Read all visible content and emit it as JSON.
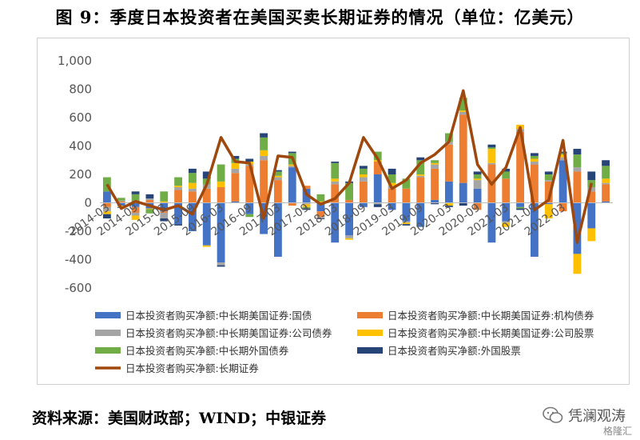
{
  "title": "图 9：季度日本投资者在美国买卖长期证券的情况（单位：亿美元）",
  "source": "资料来源：美国财政部；WIND；中银证券",
  "watermark": {
    "brand": "凭澜观涛",
    "sub": "格隆汇"
  },
  "chart_data": {
    "type": "bar",
    "stacked": true,
    "ylim": [
      -600,
      1000
    ],
    "yticks": [
      -600,
      -400,
      -200,
      0,
      200,
      400,
      600,
      800,
      1000
    ],
    "ytick_labels": [
      "-600",
      "-400",
      "-200",
      "0",
      "200",
      "400",
      "600",
      "800",
      "1,000"
    ],
    "categories": [
      "2014-03",
      "2014-06",
      "2014-09",
      "2014-12",
      "2015-03",
      "2015-06",
      "2015-09",
      "2015-12",
      "2016-03",
      "2016-06",
      "2016-09",
      "2016-12",
      "2017-03",
      "2017-06",
      "2017-09",
      "2017-12",
      "2018-03",
      "2018-06",
      "2018-09",
      "2018-12",
      "2019-03",
      "2019-06",
      "2019-09",
      "2019-12",
      "2020-03",
      "2020-06",
      "2020-09",
      "2020-12",
      "2021-03",
      "2021-06",
      "2021-09",
      "2021-12",
      "2022-03",
      "2022-06",
      "2022-09",
      "2022-12"
    ],
    "xtick_labels": [
      "2014-03",
      "2014-09",
      "2015-03",
      "2015-09",
      "2016-03",
      "2016-09",
      "2017-03",
      "2017-09",
      "2018-03",
      "2018-09",
      "2019-03",
      "2019-09",
      "2020-03",
      "2020-09",
      "2021-03",
      "2021-09",
      "2022-03"
    ],
    "series": [
      {
        "name": "日本投资者购买净额:中长期美国证券:国债",
        "type": "bar",
        "color": "#4472C4",
        "values": [
          80,
          -20,
          -30,
          -40,
          -60,
          -150,
          -200,
          -300,
          -420,
          10,
          -80,
          -220,
          -380,
          250,
          100,
          -60,
          -280,
          -230,
          -30,
          200,
          -50,
          -130,
          -170,
          20,
          150,
          140,
          100,
          -280,
          -130,
          -30,
          -380,
          -10,
          300,
          -360,
          -180,
          10
        ]
      },
      {
        "name": "日本投资者购买净额:中长期美国证券:机构债券",
        "type": "bar",
        "color": "#ED7D31",
        "values": [
          -30,
          10,
          -40,
          20,
          -10,
          90,
          80,
          100,
          110,
          200,
          260,
          300,
          160,
          -20,
          20,
          -40,
          130,
          20,
          150,
          90,
          100,
          100,
          180,
          220,
          260,
          480,
          -50,
          270,
          170,
          500,
          270,
          150,
          -60,
          220,
          80,
          120
        ]
      },
      {
        "name": "日本投资者购买净额:中长期美国证券:公司债券",
        "type": "bar",
        "color": "#A5A5A5",
        "values": [
          -30,
          5,
          -20,
          10,
          -40,
          20,
          20,
          30,
          -20,
          30,
          10,
          30,
          20,
          10,
          -10,
          -10,
          20,
          -20,
          30,
          -10,
          20,
          -10,
          10,
          30,
          20,
          20,
          60,
          10,
          -10,
          20,
          20,
          10,
          20,
          30,
          30,
          10
        ]
      },
      {
        "name": "日本投资者购买净额:中长期美国证券:公司股票",
        "type": "bar",
        "color": "#FFC000",
        "values": [
          -20,
          -10,
          -30,
          -5,
          10,
          10,
          40,
          -10,
          40,
          40,
          20,
          40,
          10,
          10,
          -20,
          10,
          20,
          -10,
          20,
          10,
          20,
          -10,
          10,
          10,
          -20,
          10,
          10,
          100,
          -30,
          30,
          20,
          -100,
          20,
          -140,
          -90,
          30
        ]
      },
      {
        "name": "日本投资者购买净额:中长期外国债券",
        "type": "bar",
        "color": "#70AD47",
        "values": [
          100,
          20,
          60,
          -30,
          70,
          60,
          70,
          40,
          120,
          30,
          -20,
          90,
          30,
          80,
          -10,
          50,
          110,
          120,
          40,
          60,
          60,
          70,
          100,
          20,
          60,
          90,
          30,
          10,
          50,
          -10,
          20,
          40,
          10,
          90,
          50,
          90
        ]
      },
      {
        "name": "日本投资者购买净额:外国股票",
        "type": "bar",
        "color": "#264478",
        "values": [
          -30,
          -5,
          20,
          30,
          -20,
          -10,
          30,
          50,
          -10,
          20,
          20,
          30,
          10,
          10,
          -10,
          -5,
          10,
          10,
          20,
          -20,
          40,
          -10,
          20,
          -10,
          -10,
          -20,
          20,
          20,
          20,
          -10,
          20,
          20,
          10,
          40,
          60,
          40
        ]
      },
      {
        "name": "日本投资者购买净额:长期证券",
        "type": "line",
        "color": "#9E480E",
        "values": [
          130,
          -40,
          10,
          -20,
          -50,
          -20,
          -80,
          130,
          460,
          290,
          280,
          -110,
          330,
          320,
          60,
          -10,
          30,
          140,
          460,
          310,
          100,
          160,
          280,
          340,
          430,
          790,
          270,
          130,
          250,
          530,
          -50,
          20,
          440,
          -280,
          140,
          null
        ]
      }
    ],
    "legend_position": "bottom",
    "grid": false
  }
}
